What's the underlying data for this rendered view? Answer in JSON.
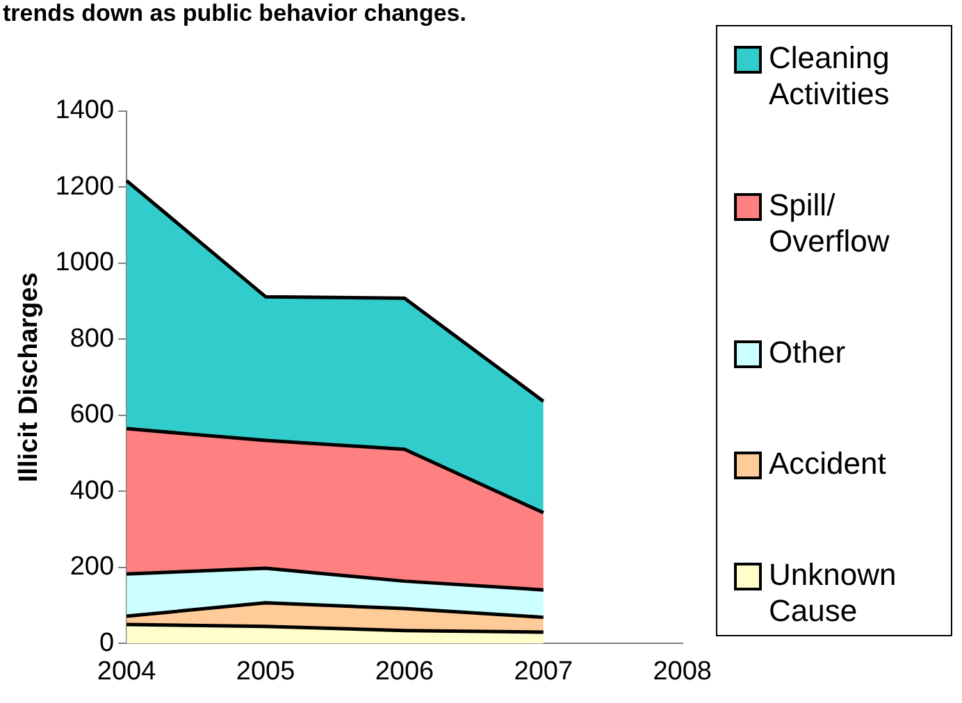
{
  "chart_data": {
    "type": "area",
    "title": "trends down as public behavior changes.",
    "ylabel": "Illicit Discharges",
    "categories": [
      "2004",
      "2005",
      "2006",
      "2007",
      "2008"
    ],
    "stacked": true,
    "series": [
      {
        "name": "Unknown Cause",
        "color": "#ffffcc",
        "values": [
          50,
          45,
          34,
          30,
          null
        ]
      },
      {
        "name": "Accident",
        "color": "#ffcc99",
        "values": [
          22,
          62,
          58,
          39,
          null
        ]
      },
      {
        "name": "Other",
        "color": "#ccffff",
        "values": [
          111,
          91,
          72,
          72,
          null
        ]
      },
      {
        "name": "Spill/ Overflow",
        "color": "#ff8080",
        "values": [
          382,
          336,
          347,
          203,
          null
        ]
      },
      {
        "name": "Cleaning Activities",
        "color": "#33cccc",
        "values": [
          652,
          378,
          397,
          293,
          null
        ]
      }
    ],
    "ylim": [
      0,
      1400
    ],
    "yticks": [
      0,
      200,
      400,
      600,
      800,
      1000,
      1200,
      1400
    ],
    "grid": false,
    "legend": "right"
  }
}
